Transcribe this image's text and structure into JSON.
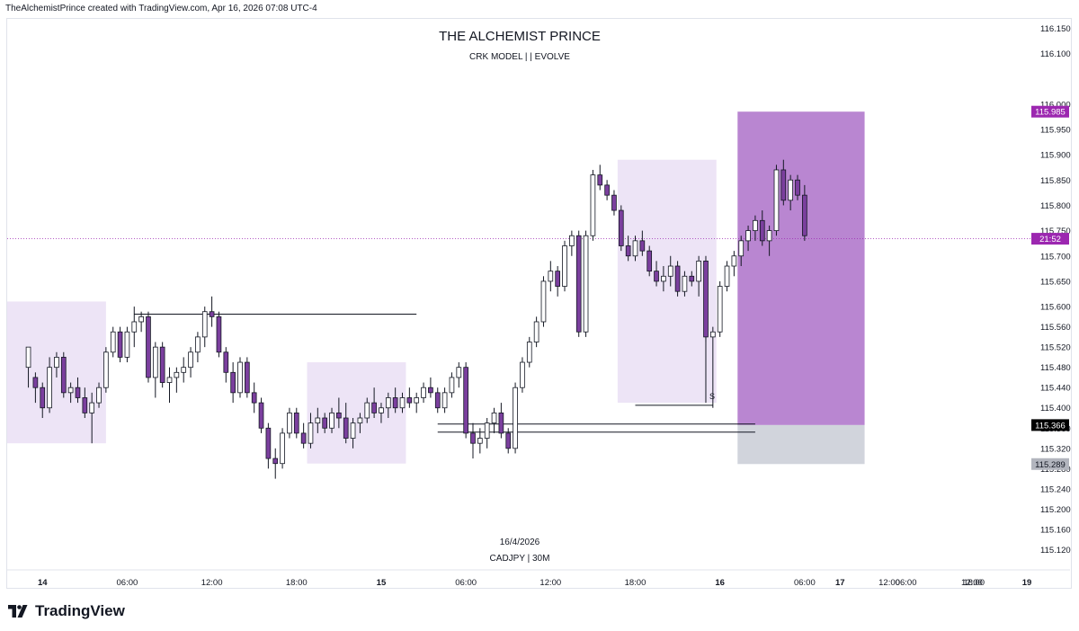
{
  "header": {
    "credit": "TheAlchemistPrince created with TradingView.com, Apr 16, 2026 07:08 UTC-4"
  },
  "watermark": {
    "title": "THE ALCHEMIST PRINCE",
    "subtitle": "CRK MODEL | | EVOLVE",
    "date": "16/4/2026",
    "symbol": "CADJPY | 30M"
  },
  "footer": {
    "brand": "TradingView",
    "logo_icon": "tradingview-logo-icon"
  },
  "colors": {
    "bull_body": "#ffffff",
    "bear_body": "#7b3f9e",
    "wick": "#131722",
    "zone": "#ede4f6",
    "target_box": "#b986d1",
    "stop_box": "#d1d4dc",
    "label_purple": "#9c27b0",
    "label_black": "#000000",
    "label_grey": "#b2b5be"
  },
  "chart_data": {
    "type": "candlestick",
    "symbol": "CADJPY",
    "timeframe": "30M",
    "y_axis": {
      "range": [
        115.08,
        116.17
      ],
      "ticks": [
        "116.150",
        "116.100",
        "116.000",
        "115.950",
        "115.900",
        "115.850",
        "115.800",
        "115.750",
        "115.700",
        "115.650",
        "115.600",
        "115.560",
        "115.520",
        "115.480",
        "115.440",
        "115.400",
        "115.360",
        "115.320",
        "115.280",
        "115.240",
        "115.200",
        "115.160",
        "115.120"
      ],
      "price_labels": [
        {
          "text": "115.985",
          "value": 115.985,
          "style": "purple"
        },
        {
          "text": "21:52",
          "value": 115.734,
          "style": "purple"
        },
        {
          "text": "115.366",
          "value": 115.366,
          "style": "black"
        },
        {
          "text": "115.289",
          "value": 115.289,
          "style": "grey"
        }
      ]
    },
    "x_axis": {
      "range": [
        -3,
        142
      ],
      "ticks": [
        {
          "label": "14",
          "bar": 2,
          "bold": true
        },
        {
          "label": "06:00",
          "bar": 14
        },
        {
          "label": "12:00",
          "bar": 26
        },
        {
          "label": "18:00",
          "bar": 38
        },
        {
          "label": "15",
          "bar": 50,
          "bold": true
        },
        {
          "label": "06:00",
          "bar": 62
        },
        {
          "label": "12:00",
          "bar": 74
        },
        {
          "label": "18:00",
          "bar": 86
        },
        {
          "label": "16",
          "bar": 98,
          "bold": true
        },
        {
          "label": "06:00",
          "bar": 110
        },
        {
          "label": "12:00",
          "bar": 122
        },
        {
          "label": "18:00",
          "bar": 134
        },
        {
          "label": "17",
          "bar": 146,
          "bold": true
        },
        {
          "label": "06:00",
          "bar": 158
        },
        {
          "label": "12:00",
          "bar": 170
        },
        {
          "label": "19",
          "bar": 180,
          "bold": true
        }
      ]
    },
    "candles": [
      [
        115.48,
        115.52,
        115.44,
        115.52
      ],
      [
        115.46,
        115.47,
        115.41,
        115.44
      ],
      [
        115.44,
        115.45,
        115.38,
        115.4
      ],
      [
        115.4,
        115.5,
        115.39,
        115.48
      ],
      [
        115.48,
        115.51,
        115.46,
        115.5
      ],
      [
        115.5,
        115.51,
        115.42,
        115.43
      ],
      [
        115.43,
        115.45,
        115.41,
        115.44
      ],
      [
        115.44,
        115.46,
        115.41,
        115.42
      ],
      [
        115.42,
        115.44,
        115.38,
        115.39
      ],
      [
        115.39,
        115.43,
        115.33,
        115.41
      ],
      [
        115.41,
        115.45,
        115.4,
        115.44
      ],
      [
        115.44,
        115.52,
        115.43,
        115.51
      ],
      [
        115.51,
        115.56,
        115.5,
        115.55
      ],
      [
        115.55,
        115.56,
        115.49,
        115.5
      ],
      [
        115.5,
        115.56,
        115.49,
        115.55
      ],
      [
        115.55,
        115.6,
        115.52,
        115.57
      ],
      [
        115.57,
        115.59,
        115.55,
        115.58
      ],
      [
        115.58,
        115.59,
        115.45,
        115.46
      ],
      [
        115.46,
        115.53,
        115.42,
        115.52
      ],
      [
        115.52,
        115.53,
        115.44,
        115.45
      ],
      [
        115.45,
        115.48,
        115.41,
        115.46
      ],
      [
        115.46,
        115.48,
        115.43,
        115.47
      ],
      [
        115.47,
        115.5,
        115.45,
        115.48
      ],
      [
        115.48,
        115.52,
        115.46,
        115.51
      ],
      [
        115.51,
        115.55,
        115.49,
        115.54
      ],
      [
        115.54,
        115.6,
        115.52,
        115.59
      ],
      [
        115.59,
        115.62,
        115.56,
        115.58
      ],
      [
        115.58,
        115.59,
        115.5,
        115.51
      ],
      [
        115.51,
        115.52,
        115.45,
        115.47
      ],
      [
        115.47,
        115.49,
        115.41,
        115.43
      ],
      [
        115.43,
        115.5,
        115.42,
        115.49
      ],
      [
        115.49,
        115.5,
        115.42,
        115.43
      ],
      [
        115.43,
        115.45,
        115.39,
        115.41
      ],
      [
        115.41,
        115.42,
        115.35,
        115.36
      ],
      [
        115.36,
        115.37,
        115.28,
        115.3
      ],
      [
        115.3,
        115.32,
        115.26,
        115.29
      ],
      [
        115.29,
        115.36,
        115.28,
        115.35
      ],
      [
        115.35,
        115.4,
        115.34,
        115.39
      ],
      [
        115.39,
        115.4,
        115.34,
        115.35
      ],
      [
        115.35,
        115.37,
        115.32,
        115.33
      ],
      [
        115.33,
        115.39,
        115.32,
        115.37
      ],
      [
        115.37,
        115.4,
        115.35,
        115.38
      ],
      [
        115.38,
        115.39,
        115.35,
        115.36
      ],
      [
        115.36,
        115.4,
        115.35,
        115.39
      ],
      [
        115.39,
        115.42,
        115.36,
        115.38
      ],
      [
        115.38,
        115.41,
        115.33,
        115.34
      ],
      [
        115.34,
        115.38,
        115.32,
        115.37
      ],
      [
        115.37,
        115.39,
        115.35,
        115.38
      ],
      [
        115.38,
        115.42,
        115.37,
        115.41
      ],
      [
        115.41,
        115.44,
        115.38,
        115.39
      ],
      [
        115.39,
        115.41,
        115.37,
        115.4
      ],
      [
        115.4,
        115.43,
        115.38,
        115.42
      ],
      [
        115.42,
        115.44,
        115.39,
        115.4
      ],
      [
        115.4,
        115.43,
        115.39,
        115.42
      ],
      [
        115.42,
        115.44,
        115.4,
        115.41
      ],
      [
        115.41,
        115.43,
        115.39,
        115.42
      ],
      [
        115.42,
        115.45,
        115.41,
        115.44
      ],
      [
        115.44,
        115.46,
        115.42,
        115.43
      ],
      [
        115.43,
        115.44,
        115.39,
        115.4
      ],
      [
        115.4,
        115.44,
        115.39,
        115.43
      ],
      [
        115.43,
        115.47,
        115.42,
        115.46
      ],
      [
        115.46,
        115.49,
        115.44,
        115.48
      ],
      [
        115.48,
        115.49,
        115.34,
        115.35
      ],
      [
        115.35,
        115.37,
        115.3,
        115.33
      ],
      [
        115.33,
        115.36,
        115.31,
        115.34
      ],
      [
        115.34,
        115.38,
        115.32,
        115.37
      ],
      [
        115.37,
        115.4,
        115.35,
        115.39
      ],
      [
        115.39,
        115.41,
        115.34,
        115.35
      ],
      [
        115.35,
        115.36,
        115.31,
        115.32
      ],
      [
        115.32,
        115.45,
        115.31,
        115.44
      ],
      [
        115.44,
        115.5,
        115.43,
        115.49
      ],
      [
        115.49,
        115.54,
        115.48,
        115.53
      ],
      [
        115.53,
        115.58,
        115.52,
        115.57
      ],
      [
        115.57,
        115.66,
        115.56,
        115.65
      ],
      [
        115.65,
        115.69,
        115.63,
        115.67
      ],
      [
        115.67,
        115.68,
        115.62,
        115.64
      ],
      [
        115.64,
        115.73,
        115.63,
        115.72
      ],
      [
        115.72,
        115.75,
        115.7,
        115.74
      ],
      [
        115.74,
        115.75,
        115.54,
        115.55
      ],
      [
        115.55,
        115.75,
        115.54,
        115.74
      ],
      [
        115.74,
        115.87,
        115.73,
        115.86
      ],
      [
        115.86,
        115.88,
        115.83,
        115.84
      ],
      [
        115.84,
        115.85,
        115.81,
        115.82
      ],
      [
        115.82,
        115.83,
        115.78,
        115.79
      ],
      [
        115.79,
        115.8,
        115.71,
        115.72
      ],
      [
        115.72,
        115.74,
        115.69,
        115.7
      ],
      [
        115.7,
        115.74,
        115.69,
        115.73
      ],
      [
        115.73,
        115.75,
        115.7,
        115.71
      ],
      [
        115.71,
        115.72,
        115.66,
        115.67
      ],
      [
        115.67,
        115.69,
        115.64,
        115.65
      ],
      [
        115.65,
        115.68,
        115.63,
        115.66
      ],
      [
        115.66,
        115.7,
        115.64,
        115.68
      ],
      [
        115.68,
        115.69,
        115.62,
        115.63
      ],
      [
        115.63,
        115.67,
        115.62,
        115.66
      ],
      [
        115.66,
        115.67,
        115.64,
        115.65
      ],
      [
        115.65,
        115.7,
        115.62,
        115.69
      ],
      [
        115.69,
        115.7,
        115.53,
        115.54
      ],
      [
        115.54,
        115.56,
        115.4,
        115.55
      ],
      [
        115.55,
        115.65,
        115.54,
        115.64
      ],
      [
        115.64,
        115.69,
        115.63,
        115.68
      ],
      [
        115.68,
        115.71,
        115.66,
        115.7
      ],
      [
        115.7,
        115.74,
        115.68,
        115.73
      ],
      [
        115.73,
        115.76,
        115.71,
        115.75
      ],
      [
        115.75,
        115.78,
        115.73,
        115.77
      ],
      [
        115.77,
        115.79,
        115.72,
        115.73
      ],
      [
        115.73,
        115.76,
        115.7,
        115.75
      ],
      [
        115.75,
        115.88,
        115.74,
        115.87
      ],
      [
        115.87,
        115.89,
        115.8,
        115.81
      ],
      [
        115.81,
        115.86,
        115.79,
        115.85
      ],
      [
        115.85,
        115.86,
        115.81,
        115.82
      ],
      [
        115.82,
        115.84,
        115.73,
        115.74
      ]
    ],
    "zones": [
      {
        "from": -3,
        "to": 11,
        "top": 115.61,
        "bottom": 115.33
      },
      {
        "from": 39.5,
        "to": 53.5,
        "top": 115.49,
        "bottom": 115.29
      },
      {
        "from": 83.5,
        "to": 97.5,
        "top": 115.89,
        "bottom": 115.41
      }
    ],
    "levels": [
      {
        "price": 115.585,
        "from": 15,
        "to": 55
      },
      {
        "price": 115.368,
        "from": 58,
        "to": 103
      },
      {
        "price": 115.352,
        "from": 58,
        "to": 103
      },
      {
        "price": 115.405,
        "from": 86,
        "to": 97
      }
    ],
    "annotations": [
      {
        "text": "S",
        "bar": 96,
        "price": 115.41
      }
    ],
    "position_box": {
      "from": 100.5,
      "to": 118.5,
      "target": 115.985,
      "entry": 115.366,
      "stop": 115.289
    },
    "current_price": 115.734
  }
}
